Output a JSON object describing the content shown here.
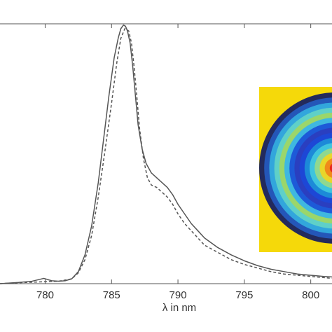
{
  "chart_data": {
    "type": "line",
    "xlabel": "λ in nm",
    "ylabel": "",
    "title": "",
    "xlim": [
      776.6,
      801.6
    ],
    "ylim": [
      0.0,
      1.08
    ],
    "x_ticks": [
      780,
      785,
      790,
      795,
      800
    ],
    "x_tick_labels": [
      "780",
      "785",
      "790",
      "795",
      "800"
    ],
    "grid": false,
    "legend": "none",
    "series": [
      {
        "style": "solid",
        "color": "#555555",
        "x": [
          776.6,
          778.0,
          779.0,
          779.9,
          780.5,
          781.0,
          781.5,
          782.0,
          782.5,
          783.0,
          783.5,
          784.0,
          784.4,
          784.8,
          785.2,
          785.5,
          785.7,
          785.9,
          786.05,
          786.2,
          786.4,
          786.6,
          786.8,
          787.0,
          787.3,
          787.6,
          788.0,
          788.4,
          788.8,
          789.2,
          789.6,
          790.0,
          790.5,
          791.0,
          791.5,
          792.0,
          793.0,
          794.0,
          795.0,
          796.0,
          797.0,
          798.0,
          799.0,
          800.0,
          801.0,
          801.6
        ],
        "y": [
          0.0,
          0.005,
          0.01,
          0.022,
          0.012,
          0.01,
          0.012,
          0.02,
          0.05,
          0.12,
          0.24,
          0.42,
          0.6,
          0.78,
          0.94,
          1.02,
          1.06,
          1.075,
          1.07,
          1.05,
          1.0,
          0.9,
          0.78,
          0.66,
          0.56,
          0.5,
          0.46,
          0.44,
          0.42,
          0.4,
          0.37,
          0.33,
          0.29,
          0.25,
          0.22,
          0.19,
          0.15,
          0.12,
          0.095,
          0.075,
          0.06,
          0.05,
          0.04,
          0.035,
          0.03,
          0.028
        ]
      },
      {
        "style": "dashed",
        "color": "#555555",
        "x": [
          776.6,
          778.0,
          780.0,
          781.0,
          782.0,
          782.5,
          783.0,
          783.5,
          784.0,
          784.5,
          785.0,
          785.4,
          785.7,
          786.0,
          786.3,
          786.5,
          786.7,
          786.9,
          787.1,
          787.4,
          787.7,
          788.0,
          788.4,
          788.8,
          789.2,
          789.6,
          790.0,
          790.5,
          791.0,
          791.5,
          792.0,
          793.0,
          794.0,
          795.0,
          796.0,
          797.0,
          798.0,
          799.0,
          800.0,
          801.0,
          801.6
        ],
        "y": [
          0.0,
          0.004,
          0.008,
          0.01,
          0.02,
          0.045,
          0.1,
          0.2,
          0.36,
          0.55,
          0.75,
          0.92,
          1.02,
          1.06,
          1.05,
          1.0,
          0.9,
          0.78,
          0.65,
          0.52,
          0.44,
          0.41,
          0.4,
          0.38,
          0.36,
          0.33,
          0.29,
          0.25,
          0.22,
          0.19,
          0.16,
          0.13,
          0.1,
          0.08,
          0.065,
          0.05,
          0.04,
          0.035,
          0.03,
          0.025,
          0.022
        ]
      }
    ],
    "inset": {
      "type": "heatmap",
      "colormap": "jet",
      "background": "#f5d90a",
      "rings_outer_to_inner": [
        "#232a5c",
        "#2456b8",
        "#32a6dc",
        "#5fd0c8",
        "#9bd66a",
        "#3fb8e0",
        "#1d5ad8",
        "#2a3fc0",
        "#1d47d6",
        "#1c8ad8",
        "#3ec4de",
        "#8fd890",
        "#e8d62a",
        "#f08a1a",
        "#e8261c"
      ]
    }
  }
}
